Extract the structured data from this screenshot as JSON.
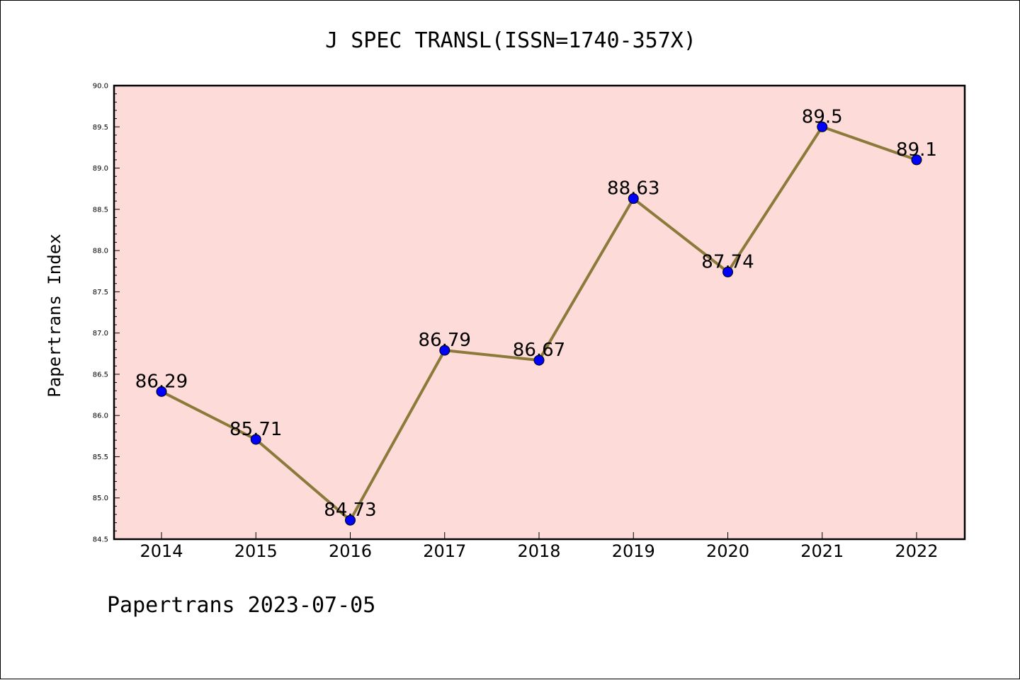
{
  "chart_data": {
    "type": "line",
    "title": "J SPEC TRANSL(ISSN=1740-357X)",
    "xlabel": "",
    "ylabel": "Papertrans Index",
    "categories": [
      "2014",
      "2015",
      "2016",
      "2017",
      "2018",
      "2019",
      "2020",
      "2021",
      "2022"
    ],
    "values": [
      86.29,
      85.71,
      84.73,
      86.79,
      86.67,
      88.63,
      87.74,
      89.5,
      89.1
    ],
    "data_labels": [
      "86.29",
      "85.71",
      "84.73",
      "86.79",
      "86.67",
      "88.63",
      "87.74",
      "89.5",
      "89.1"
    ],
    "ylim": [
      84.5,
      90.0
    ],
    "yticks": [
      "84.5",
      "85.0",
      "85.5",
      "86.0",
      "86.5",
      "87.0",
      "87.5",
      "88.0",
      "88.5",
      "89.0",
      "89.5",
      "90.0"
    ],
    "grid": false,
    "legend": false,
    "colors": {
      "plot_background": "#fddbd8",
      "line": "#8b7a3a",
      "marker": "#0000ff"
    }
  },
  "footer": "Papertrans 2023-07-05"
}
